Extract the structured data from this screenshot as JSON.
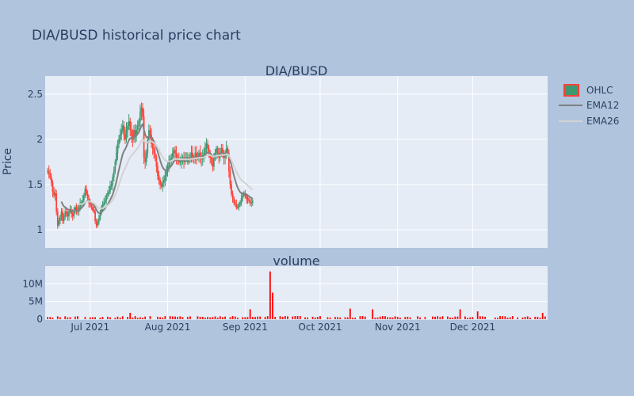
{
  "title": "DIA/BUSD historical price chart",
  "colors": {
    "paper": "#b0c4de",
    "plot_bg": "#e5ecf6",
    "grid": "#ffffff",
    "increasing": "#3d9970",
    "decreasing": "#ff4136",
    "ema12": "#808080",
    "ema26": "#d3d3d3",
    "volume": "#ff0000",
    "text": "#2a3f5f"
  },
  "chart_data": [
    {
      "type": "candlestick",
      "subtitle": "DIA/BUSD",
      "ylabel": "Price",
      "ylim": [
        0.8,
        2.7
      ],
      "yticks": [
        1,
        1.5,
        2,
        2.5
      ],
      "ytick_labels": [
        "1",
        "1.5",
        "2",
        "2.5"
      ],
      "xlim": [
        "2021-06-13",
        "2021-12-31"
      ],
      "xticks": [
        "2021-07-01",
        "2021-08-01",
        "2021-09-01",
        "2021-10-01",
        "2021-11-01",
        "2021-12-01"
      ],
      "xtick_labels": [
        "Jul 2021",
        "Aug 2021",
        "Sep 2021",
        "Oct 2021",
        "Nov 2021",
        "Dec 2021"
      ],
      "legend": [
        "OHLC",
        "EMA12",
        "EMA26"
      ],
      "legend_position": "top-right",
      "series": [
        {
          "name": "OHLC",
          "start": "2021-06-14",
          "interval_hours": 12,
          "close": [
            1.65,
            1.62,
            1.58,
            1.52,
            1.42,
            1.38,
            1.4,
            1.2,
            1.05,
            1.1,
            1.15,
            1.2,
            1.1,
            1.15,
            1.2,
            1.18,
            1.15,
            1.2,
            1.22,
            1.18,
            1.15,
            1.2,
            1.25,
            1.22,
            1.2,
            1.25,
            1.3,
            1.3,
            1.33,
            1.38,
            1.45,
            1.4,
            1.35,
            1.3,
            1.28,
            1.25,
            1.22,
            1.2,
            1.1,
            1.05,
            1.08,
            1.12,
            1.18,
            1.25,
            1.28,
            1.3,
            1.33,
            1.38,
            1.4,
            1.42,
            1.48,
            1.5,
            1.58,
            1.65,
            1.75,
            1.85,
            1.95,
            2.0,
            2.05,
            2.1,
            2.15,
            2.05,
            2.0,
            2.1,
            2.15,
            2.2,
            2.1,
            2.05,
            2.0,
            2.1,
            2.05,
            2.1,
            2.15,
            2.2,
            2.3,
            2.35,
            2.25,
            1.8,
            1.75,
            1.85,
            2.0,
            2.1,
            2.05,
            1.95,
            1.9,
            1.85,
            1.8,
            1.7,
            1.6,
            1.55,
            1.5,
            1.48,
            1.52,
            1.55,
            1.6,
            1.65,
            1.7,
            1.75,
            1.78,
            1.8,
            1.85,
            1.88,
            1.85,
            1.8,
            1.78,
            1.75,
            1.75,
            1.78,
            1.8,
            1.75,
            1.78,
            1.8,
            1.75,
            1.78,
            1.8,
            1.85,
            1.8,
            1.78,
            1.85,
            1.8,
            1.82,
            1.85,
            1.8,
            1.78,
            1.82,
            1.85,
            1.9,
            1.95,
            1.9,
            1.85,
            1.8,
            1.75,
            1.7,
            1.8,
            1.85,
            1.9,
            1.85,
            1.8,
            1.85,
            1.9,
            1.85,
            1.8,
            1.85,
            1.9,
            1.85,
            1.65,
            1.5,
            1.4,
            1.35,
            1.3,
            1.28,
            1.25,
            1.25,
            1.28,
            1.3,
            1.35,
            1.38,
            1.4,
            1.38,
            1.35,
            1.33,
            1.32,
            1.3,
            1.3,
            1.32
          ]
        },
        {
          "name": "EMA12"
        },
        {
          "name": "EMA26"
        }
      ]
    },
    {
      "type": "bar",
      "subtitle": "volume",
      "ylim": [
        0,
        15000000
      ],
      "yticks": [
        0,
        5000000,
        10000000
      ],
      "ytick_labels": [
        "0",
        "5M",
        "10M"
      ],
      "spikes": [
        {
          "date": "2021-07-17",
          "value": 1800000
        },
        {
          "date": "2021-09-03",
          "value": 2800000
        },
        {
          "date": "2021-09-11",
          "value": 13500000
        },
        {
          "date": "2021-09-12",
          "value": 7500000
        },
        {
          "date": "2021-10-13",
          "value": 3000000
        },
        {
          "date": "2021-10-22",
          "value": 2800000
        },
        {
          "date": "2021-11-26",
          "value": 2800000
        },
        {
          "date": "2021-12-03",
          "value": 2200000
        },
        {
          "date": "2021-12-29",
          "value": 1800000
        }
      ]
    }
  ]
}
